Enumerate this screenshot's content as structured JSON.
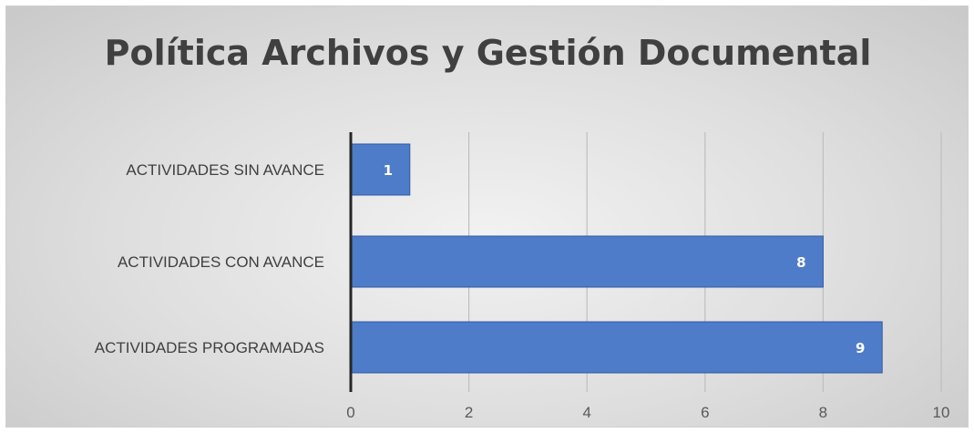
{
  "chart_data": {
    "type": "bar",
    "orientation": "horizontal",
    "title": "Política Archivos y Gestión Documental",
    "categories": [
      "ACTIVIDADES SIN AVANCE",
      "ACTIVIDADES CON AVANCE",
      "ACTIVIDADES PROGRAMADAS"
    ],
    "values": [
      1,
      8,
      9
    ],
    "xlim": [
      0,
      10
    ],
    "x_ticks": [
      "0",
      "2",
      "4",
      "6",
      "8",
      "10"
    ],
    "xlabel": "",
    "ylabel": "",
    "grid": "vertical",
    "legend": "none",
    "data_labels": "inside-end",
    "bar_color": "#4f7cc9"
  }
}
